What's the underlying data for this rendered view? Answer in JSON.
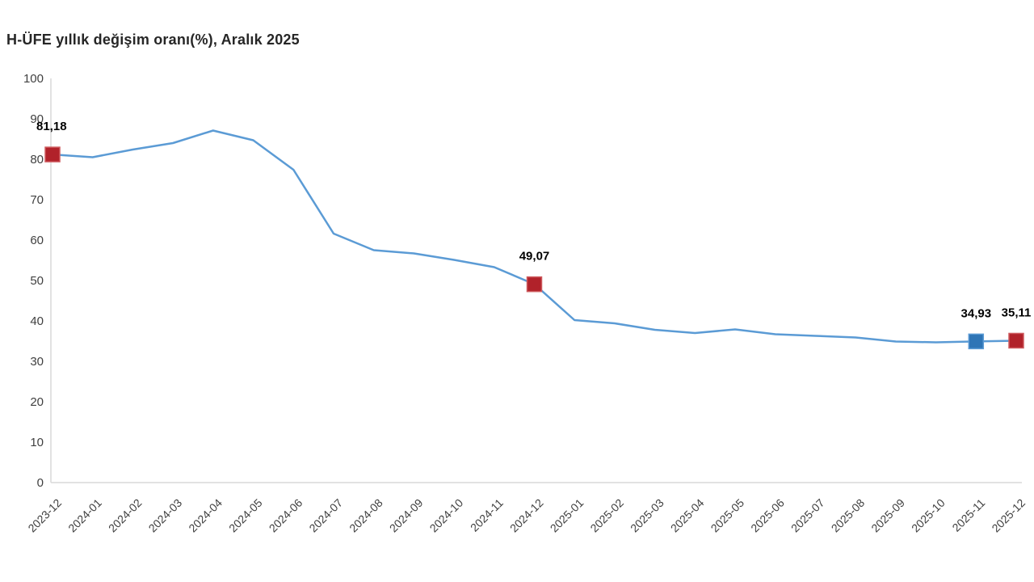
{
  "chart_data": {
    "type": "line",
    "title": "H-ÜFE yıllık değişim oranı(%), Aralık 2025",
    "x": [
      "2023-12",
      "2024-01",
      "2024-02",
      "2024-03",
      "2024-04",
      "2024-05",
      "2024-06",
      "2024-07",
      "2024-08",
      "2024-09",
      "2024-10",
      "2024-11",
      "2024-12",
      "2025-01",
      "2025-02",
      "2025-03",
      "2025-04",
      "2025-05",
      "2025-06",
      "2025-07",
      "2025-08",
      "2025-09",
      "2025-10",
      "2025-11",
      "2025-12"
    ],
    "values": [
      81.18,
      80.5,
      82.4,
      84.0,
      87.1,
      84.7,
      77.4,
      61.6,
      57.5,
      56.7,
      55.1,
      53.3,
      49.07,
      40.2,
      39.4,
      37.8,
      37.0,
      37.9,
      36.7,
      36.3,
      35.9,
      34.9,
      34.7,
      34.93,
      35.11
    ],
    "ylim": [
      0,
      100
    ],
    "ytick_step": 10,
    "grid": false,
    "legend": "none",
    "xlabel": "",
    "ylabel": "",
    "colors": {
      "line": "#5B9BD5",
      "marker_red": "#B1222A",
      "marker_red_border": "#CE5A5E",
      "marker_blue": "#2E75B6",
      "marker_blue_border": "#5B9BD5",
      "axis": "#D9D9D9",
      "tick_text": "#404040",
      "title_text": "#262626",
      "data_label_text": "#000000"
    },
    "annotations": [
      {
        "x": "2023-12",
        "value": 81.18,
        "label": "81,18",
        "marker": "red",
        "label_align": "left"
      },
      {
        "x": "2024-12",
        "value": 49.07,
        "label": "49,07",
        "marker": "red",
        "label_align": "center"
      },
      {
        "x": "2025-11",
        "value": 34.93,
        "label": "34,93",
        "marker": "blue",
        "label_align": "center"
      },
      {
        "x": "2025-12",
        "value": 35.11,
        "label": "35,11",
        "marker": "red",
        "label_align": "center"
      }
    ]
  }
}
